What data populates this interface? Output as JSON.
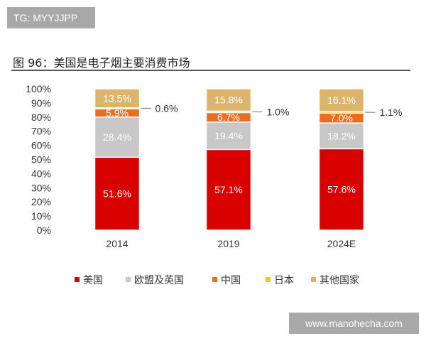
{
  "watermark_top": "TG: MYYJJPP",
  "watermark_bottom": "www.manohecha.com",
  "figure_title": "图 96：美国是电子烟主要消费市场",
  "chart_data": {
    "type": "bar",
    "stacked": true,
    "categories": [
      "2014",
      "2019",
      "2024E"
    ],
    "series": [
      {
        "name": "美国",
        "color": "#d90000",
        "values": [
          51.6,
          57.1,
          57.6
        ],
        "labels": [
          "51.6%",
          "57.1%",
          "57.6%"
        ]
      },
      {
        "name": "欧盟及英国",
        "color": "#c8c8c8",
        "values": [
          28.4,
          19.4,
          18.2
        ],
        "labels": [
          "28.4%",
          "19.4%",
          "18.2%"
        ]
      },
      {
        "name": "中国",
        "color": "#ef6c1f",
        "values": [
          5.9,
          6.7,
          7.0
        ],
        "labels": [
          "5.9%",
          "6.7%",
          "7.0%"
        ]
      },
      {
        "name": "日本",
        "color": "#f5c518",
        "values": [
          0.6,
          1.0,
          1.1
        ],
        "labels": [
          "0.6%",
          "1.0%",
          "1.1%"
        ]
      },
      {
        "name": "其他国家",
        "color": "#dcb56c",
        "values": [
          13.5,
          15.8,
          16.1
        ],
        "labels": [
          "13.5%",
          "15.8%",
          "16.1%"
        ]
      }
    ],
    "yticks": [
      "0%",
      "10%",
      "20%",
      "30%",
      "40%",
      "50%",
      "60%",
      "70%",
      "80%",
      "90%",
      "100%"
    ],
    "ylim": [
      0,
      100
    ],
    "grid": false,
    "legend_placement": "bottom"
  }
}
